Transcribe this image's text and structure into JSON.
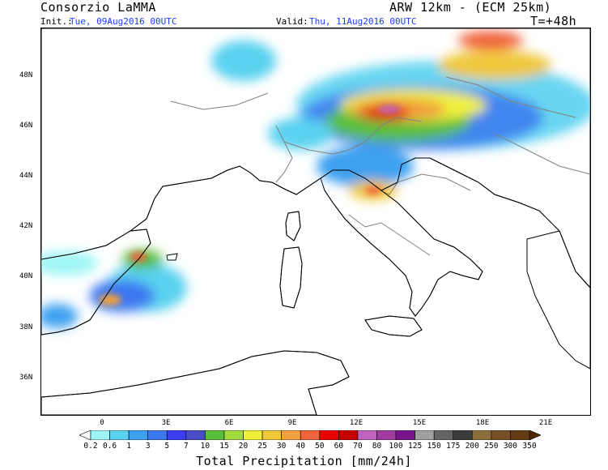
{
  "header": {
    "org": "Consorzio LaMMA",
    "model": "ARW 12km - (ECM 25km)",
    "init_label": "Init.:",
    "init_value": "Tue, 09Aug2016 00UTC",
    "valid_label": "Valid:",
    "valid_value": "Thu, 11Aug2016 00UTC",
    "lead": "T=+48h"
  },
  "map": {
    "lat_labels": [
      "48N",
      "46N",
      "44N",
      "42N",
      "40N",
      "38N",
      "36N"
    ],
    "lon_labels": [
      "0",
      "3E",
      "6E",
      "9E",
      "12E",
      "15E",
      "18E",
      "21E"
    ],
    "colors": {
      "sea": "#ffffff",
      "coast": "#000000",
      "borders": "#808080"
    }
  },
  "colorbar": {
    "title": "Total Precipitation [mm/24h]",
    "levels": [
      "0.2",
      "0.6",
      "1",
      "3",
      "5",
      "7",
      "10",
      "15",
      "20",
      "25",
      "30",
      "40",
      "50",
      "60",
      "70",
      "80",
      "100",
      "125",
      "150",
      "175",
      "200",
      "250",
      "300",
      "350"
    ],
    "colors": [
      "#ffffff",
      "#9ff5f5",
      "#5ad2f0",
      "#3ca0f0",
      "#3c78f0",
      "#3c3cf0",
      "#4b4bc8",
      "#5abe3c",
      "#a0dc3c",
      "#f0f03c",
      "#f0c83c",
      "#f0a03c",
      "#f0643c",
      "#e60000",
      "#c80000",
      "#be64be",
      "#a03ca0",
      "#78148c",
      "#a0a0a0",
      "#646464",
      "#3c3c3c",
      "#8c6e3c",
      "#785028",
      "#643c14",
      "#502800"
    ]
  }
}
